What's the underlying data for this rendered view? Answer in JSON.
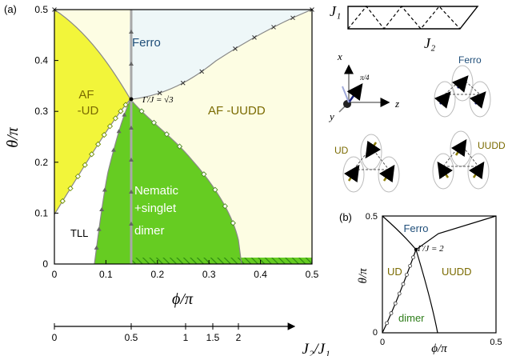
{
  "main": {
    "panel_label": "(a)",
    "x_axis_label": "ϕ/π",
    "y_axis_label": "θ/π",
    "x_ticks": [
      "0",
      "0.1",
      "0.2",
      "0.3",
      "0.4",
      "0.5"
    ],
    "y_ticks": [
      "0",
      "0.1",
      "0.2",
      "0.3",
      "0.4",
      "0.5"
    ],
    "annotation": "Γ/J = √3",
    "regions": {
      "ferro": "Ferro",
      "af_ud_1": "AF",
      "af_ud_2": "-UD",
      "af_uudd": "AF -UUDD",
      "nematic_1": "Nematic",
      "nematic_2": "+singlet",
      "nematic_3": "dimer",
      "tll": "TLL"
    },
    "colors": {
      "ferro": "#eef7f8",
      "af_ud": "#f2f53a",
      "af_uudd": "#fdfde3",
      "nematic": "#66cc22",
      "tll": "#ffffff"
    }
  },
  "secondary_axis": {
    "label": "J₂/J₁",
    "ticks": [
      "0",
      "0.5",
      "1",
      "1.5",
      "2"
    ]
  },
  "lattice": {
    "j1_label": "J₁",
    "j2_label": "J₂",
    "axis_x": "x",
    "axis_y": "y",
    "axis_z": "z",
    "angle_label": "π/4",
    "ferro_label": "Ferro",
    "ud_label": "UD",
    "uudd_label": "UUDD"
  },
  "inset": {
    "panel_label": "(b)",
    "x_axis_label": "ϕ/π",
    "y_axis_label": "θ/π",
    "x_ticks": [
      "0",
      "0.5"
    ],
    "y_ticks": [
      "0",
      "0.5"
    ],
    "annotation": "Γ/J = 2",
    "regions": {
      "ferro": "Ferro",
      "ud": "UD",
      "uudd": "UUDD",
      "dimer": "dimer"
    }
  }
}
